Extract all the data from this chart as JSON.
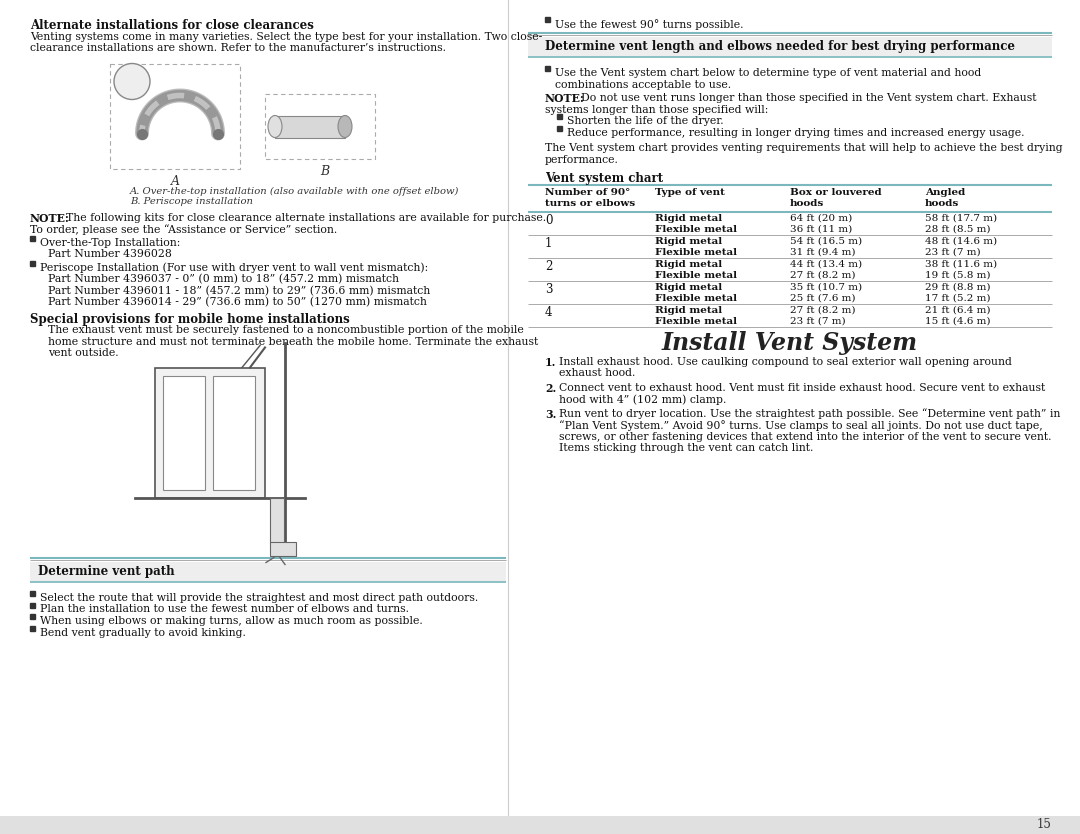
{
  "page_bg": "#ffffff",
  "teal_color": "#7ab8be",
  "gray_line": "#aaaaaa",
  "text_color": "#222222",
  "title_install_vent": "Install Vent System",
  "left_col": {
    "heading1": "Alternate installations for close clearances",
    "para1a": "Venting systems come in many varieties. Select the type best for your installation. Two close-",
    "para1b": "clearance installations are shown. Refer to the manufacturer’s instructions.",
    "caption1": "A. Over-the-top installation (also available with one offset elbow)",
    "caption2": "B. Periscope installation",
    "note_intro": "NOTE: The following kits for close clearance alternate installations are available for purchase.\nTo order, please see the “Assistance or Service” section.",
    "bullet1_head": "Over-the-Top Installation:",
    "bullet1_body": "Part Number 4396028",
    "bullet2_head": "Periscope Installation (For use with dryer vent to wall vent mismatch):",
    "bullet2_body1": "Part Number 4396037 - 0” (0 mm) to 18” (457.2 mm) mismatch",
    "bullet2_body2": "Part Number 4396011 - 18” (457.2 mm) to 29” (736.6 mm) mismatch",
    "bullet2_body3": "Part Number 4396014 - 29” (736.6 mm) to 50” (1270 mm) mismatch",
    "heading2": "Special provisions for mobile home installations",
    "para2a": "The exhaust vent must be securely fastened to a noncombustible portion of the mobile",
    "para2b": "home structure and must not terminate beneath the mobile home. Terminate the exhaust",
    "para2c": "vent outside.",
    "heading3": "Determine vent path",
    "vpath_bullets": [
      "Select the route that will provide the straightest and most direct path outdoors.",
      "Plan the installation to use the fewest number of elbows and turns.",
      "When using elbows or making turns, allow as much room as possible.",
      "Bend vent gradually to avoid kinking."
    ]
  },
  "right_col": {
    "bullet_top": "Use the fewest 90° turns possible.",
    "heading_section": "Determine vent length and elbows needed for best drying performance",
    "bullet_r1a": "Use the Vent system chart below to determine type of vent material and hood",
    "bullet_r1b": "combinations acceptable to use.",
    "note_line1": "NOTE: Do not use vent runs longer than those specified in the Vent system chart. Exhaust",
    "note_line2": "systems longer than those specified will:",
    "note_bullet1": "Shorten the life of the dryer.",
    "note_bullet2": "Reduce performance, resulting in longer drying times and increased energy usage.",
    "para_bottom1": "The Vent system chart provides venting requirements that will help to achieve the best drying",
    "para_bottom2": "performance.",
    "chart_heading": "Vent system chart",
    "rows": [
      {
        "num": "0",
        "rigid_box": "64 ft (20 m)",
        "flex_box": "36 ft (11 m)",
        "rigid_angled": "58 ft (17.7 m)",
        "flex_angled": "28 ft (8.5 m)"
      },
      {
        "num": "1",
        "rigid_box": "54 ft (16.5 m)",
        "flex_box": "31 ft (9.4 m)",
        "rigid_angled": "48 ft (14.6 m)",
        "flex_angled": "23 ft (7 m)"
      },
      {
        "num": "2",
        "rigid_box": "44 ft (13.4 m)",
        "flex_box": "27 ft (8.2 m)",
        "rigid_angled": "38 ft (11.6 m)",
        "flex_angled": "19 ft (5.8 m)"
      },
      {
        "num": "3",
        "rigid_box": "35 ft (10.7 m)",
        "flex_box": "25 ft (7.6 m)",
        "rigid_angled": "29 ft (8.8 m)",
        "flex_angled": "17 ft (5.2 m)"
      },
      {
        "num": "4",
        "rigid_box": "27 ft (8.2 m)",
        "flex_box": "23 ft (7 m)",
        "rigid_angled": "21 ft (6.4 m)",
        "flex_angled": "15 ft (4.6 m)"
      }
    ],
    "install_step1a": "Install exhaust hood. Use caulking compound to seal exterior wall opening around",
    "install_step1b": "exhaust hood.",
    "install_step2a": "Connect vent to exhaust hood. Vent must fit inside exhaust hood. Secure vent to exhaust",
    "install_step2b": "hood with 4” (102 mm) clamp.",
    "install_step3a": "Run vent to dryer location. Use the straightest path possible. See “Determine vent path” in",
    "install_step3b": "“Plan Vent System.” Avoid 90° turns. Use clamps to seal all joints. Do not use duct tape,",
    "install_step3c": "screws, or other fastening devices that extend into the interior of the vent to secure vent.",
    "install_step3d": "Items sticking through the vent can catch lint."
  },
  "page_num": "15"
}
